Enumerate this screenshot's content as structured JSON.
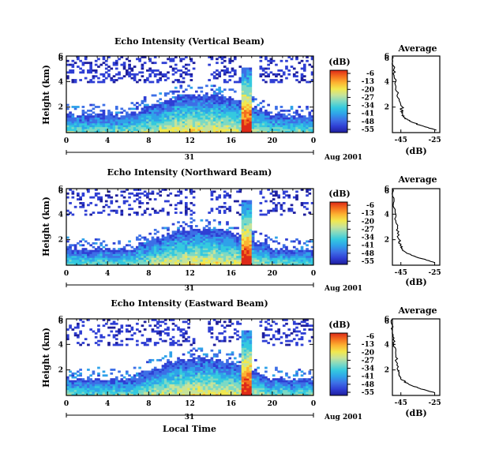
{
  "colors": {
    "scale": [
      "#1e1e9c",
      "#2f3fd4",
      "#3d6fe6",
      "#2fa2e9",
      "#34c9df",
      "#7cd9c4",
      "#c6e39a",
      "#f2e84e",
      "#fcb432",
      "#f4701e",
      "#dd2a18"
    ],
    "background": "#ffffff"
  },
  "shared": {
    "x_ticks": [
      "0",
      "4",
      "8",
      "12",
      "16",
      "20",
      "0"
    ],
    "y_ticks": [
      "2",
      "4",
      "6"
    ],
    "colorbar_unit": "(dB)",
    "colorbar_ticks": [
      "-6",
      "-13",
      "-20",
      "-27",
      "-34",
      "-41",
      "-48",
      "-55"
    ],
    "date_day": "31",
    "date_label": "Aug 2001",
    "avg_title": "Average",
    "avg_x_ticks": [
      "-45",
      "-25"
    ],
    "avg_xlabel": "(dB)",
    "ylabel": "Height (km)",
    "xlabel": "Local Time"
  },
  "chart_data": [
    {
      "type": "heatmap",
      "title": "Echo Intensity (Vertical Beam)",
      "xlabel": "Local Time",
      "ylabel": "Height (km)",
      "xlim": [
        0,
        24
      ],
      "ylim": [
        0,
        6
      ],
      "colorbar_range": [
        -55,
        -6
      ],
      "colorbar_unit": "(dB)",
      "boundary_layer_top_km": 1.3,
      "strong_echo_column_hours": [
        17.0,
        18.0
      ],
      "strong_echo_column_top_km": 5.0,
      "average_profile": {
        "title": "Average",
        "xlabel": "(dB)",
        "xlim": [
          -50,
          -22
        ],
        "height_km": [
          0.2,
          0.4,
          0.6,
          0.8,
          1.0,
          1.2,
          1.4,
          1.6,
          1.8,
          2.0,
          2.5,
          3.0,
          3.5,
          4.0,
          4.5,
          5.0,
          5.5,
          6.0
        ],
        "values_db": [
          -24,
          -29,
          -34,
          -38,
          -41,
          -43,
          -44,
          -44,
          -45,
          -44,
          -46,
          -47,
          -48,
          -48,
          -49,
          -49,
          -50,
          -50
        ]
      }
    },
    {
      "type": "heatmap",
      "title": "Echo Intensity (Northward Beam)",
      "xlabel": "Local Time",
      "ylabel": "Height (km)",
      "xlim": [
        0,
        24
      ],
      "ylim": [
        0,
        6
      ],
      "colorbar_range": [
        -55,
        -6
      ],
      "colorbar_unit": "(dB)",
      "boundary_layer_top_km": 1.2,
      "strong_echo_column_hours": [
        17.0,
        18.0
      ],
      "strong_echo_column_top_km": 5.0,
      "average_profile": {
        "title": "Average",
        "xlabel": "(dB)",
        "xlim": [
          -50,
          -22
        ],
        "height_km": [
          0.2,
          0.4,
          0.6,
          0.8,
          1.0,
          1.2,
          1.4,
          1.6,
          1.8,
          2.0,
          2.5,
          3.0,
          3.5,
          4.0,
          4.5,
          5.0,
          5.5,
          6.0
        ],
        "values_db": [
          -25,
          -30,
          -35,
          -39,
          -42,
          -44,
          -45,
          -45,
          -46,
          -46,
          -47,
          -47,
          -48,
          -48,
          -49,
          -49,
          -50,
          -50
        ]
      }
    },
    {
      "type": "heatmap",
      "title": "Echo Intensity (Eastward Beam)",
      "xlabel": "Local Time",
      "ylabel": "Height (km)",
      "xlim": [
        0,
        24
      ],
      "ylim": [
        0,
        6
      ],
      "colorbar_range": [
        -55,
        -6
      ],
      "colorbar_unit": "(dB)",
      "boundary_layer_top_km": 1.2,
      "strong_echo_column_hours": [
        17.0,
        18.0
      ],
      "strong_echo_column_top_km": 5.0,
      "average_profile": {
        "title": "Average",
        "xlabel": "(dB)",
        "xlim": [
          -50,
          -22
        ],
        "height_km": [
          0.2,
          0.4,
          0.6,
          0.8,
          1.0,
          1.2,
          1.4,
          1.6,
          1.8,
          2.0,
          2.5,
          3.0,
          3.5,
          4.0,
          4.5,
          5.0,
          5.5,
          6.0
        ],
        "values_db": [
          -25,
          -30,
          -35,
          -39,
          -42,
          -44,
          -45,
          -46,
          -46,
          -47,
          -47,
          -48,
          -48,
          -49,
          -49,
          -50,
          -50,
          -50
        ]
      }
    }
  ]
}
